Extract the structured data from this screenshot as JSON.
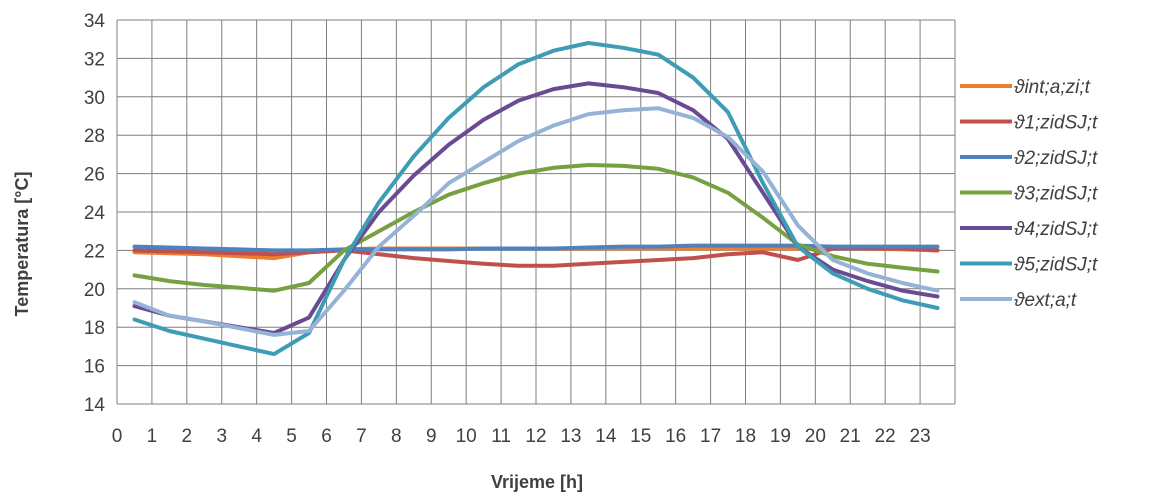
{
  "chart_data": {
    "type": "line",
    "title": "",
    "xlabel": "Vrijeme [h]",
    "ylabel": "Temperatura [°C]",
    "x": [
      0,
      1,
      2,
      3,
      4,
      5,
      6,
      7,
      8,
      9,
      10,
      11,
      12,
      13,
      14,
      15,
      16,
      17,
      18,
      19,
      20,
      21,
      22,
      23
    ],
    "ylim": [
      14,
      34
    ],
    "yticks": [
      14,
      16,
      18,
      20,
      22,
      24,
      26,
      28,
      30,
      32,
      34
    ],
    "grid": true,
    "legend_position": "right",
    "series": [
      {
        "name": "ϑint;a;zi;t",
        "color": "#ED7D31",
        "values": [
          21.9,
          21.85,
          21.8,
          21.7,
          21.6,
          21.9,
          22.05,
          22.1,
          22.1,
          22.1,
          22.1,
          22.1,
          22.1,
          22.1,
          22.1,
          22.1,
          22.1,
          22.1,
          22.1,
          22.1,
          22.1,
          22.1,
          22.05,
          22.0
        ]
      },
      {
        "name": "ϑ1;zidSJ;t",
        "color": "#C0504D",
        "values": [
          22.0,
          21.95,
          21.9,
          21.85,
          21.8,
          21.9,
          22.0,
          21.8,
          21.6,
          21.45,
          21.3,
          21.2,
          21.2,
          21.3,
          21.4,
          21.5,
          21.6,
          21.8,
          21.9,
          21.5,
          22.1,
          22.1,
          22.1,
          22.0
        ]
      },
      {
        "name": "ϑ2;zidSJ;t",
        "color": "#4F81BD",
        "values": [
          22.2,
          22.15,
          22.1,
          22.05,
          22.0,
          22.0,
          22.05,
          22.05,
          22.05,
          22.05,
          22.1,
          22.1,
          22.1,
          22.15,
          22.2,
          22.2,
          22.25,
          22.25,
          22.25,
          22.25,
          22.2,
          22.2,
          22.2,
          22.2
        ]
      },
      {
        "name": "ϑ3;zidSJ;t",
        "color": "#77A041",
        "values": [
          20.7,
          20.4,
          20.2,
          20.05,
          19.9,
          20.3,
          22.0,
          23.0,
          24.0,
          24.9,
          25.5,
          26.0,
          26.3,
          26.45,
          26.4,
          26.25,
          25.8,
          25.0,
          23.7,
          22.3,
          21.7,
          21.3,
          21.1,
          20.9
        ]
      },
      {
        "name": "ϑ4;zidSJ;t",
        "color": "#6A4A92",
        "values": [
          19.1,
          18.6,
          18.3,
          18.0,
          17.7,
          18.5,
          21.5,
          24.0,
          25.9,
          27.5,
          28.8,
          29.8,
          30.4,
          30.7,
          30.5,
          30.2,
          29.3,
          27.8,
          25.0,
          22.2,
          21.0,
          20.4,
          19.9,
          19.6
        ]
      },
      {
        "name": "ϑ5;zidSJ;t",
        "color": "#3E9CB4",
        "values": [
          18.4,
          17.8,
          17.4,
          17.0,
          16.6,
          17.7,
          21.5,
          24.5,
          26.9,
          28.9,
          30.5,
          31.7,
          32.4,
          32.8,
          32.55,
          32.2,
          31.0,
          29.2,
          25.5,
          22.2,
          20.8,
          20.0,
          19.4,
          19.0
        ]
      },
      {
        "name": "ϑext;a;t",
        "color": "#95B3D7",
        "values": [
          19.3,
          18.6,
          18.3,
          17.95,
          17.6,
          17.8,
          19.9,
          22.2,
          23.8,
          25.5,
          26.6,
          27.7,
          28.5,
          29.1,
          29.3,
          29.4,
          28.9,
          27.9,
          26.1,
          23.3,
          21.5,
          20.8,
          20.3,
          19.9
        ]
      }
    ]
  }
}
